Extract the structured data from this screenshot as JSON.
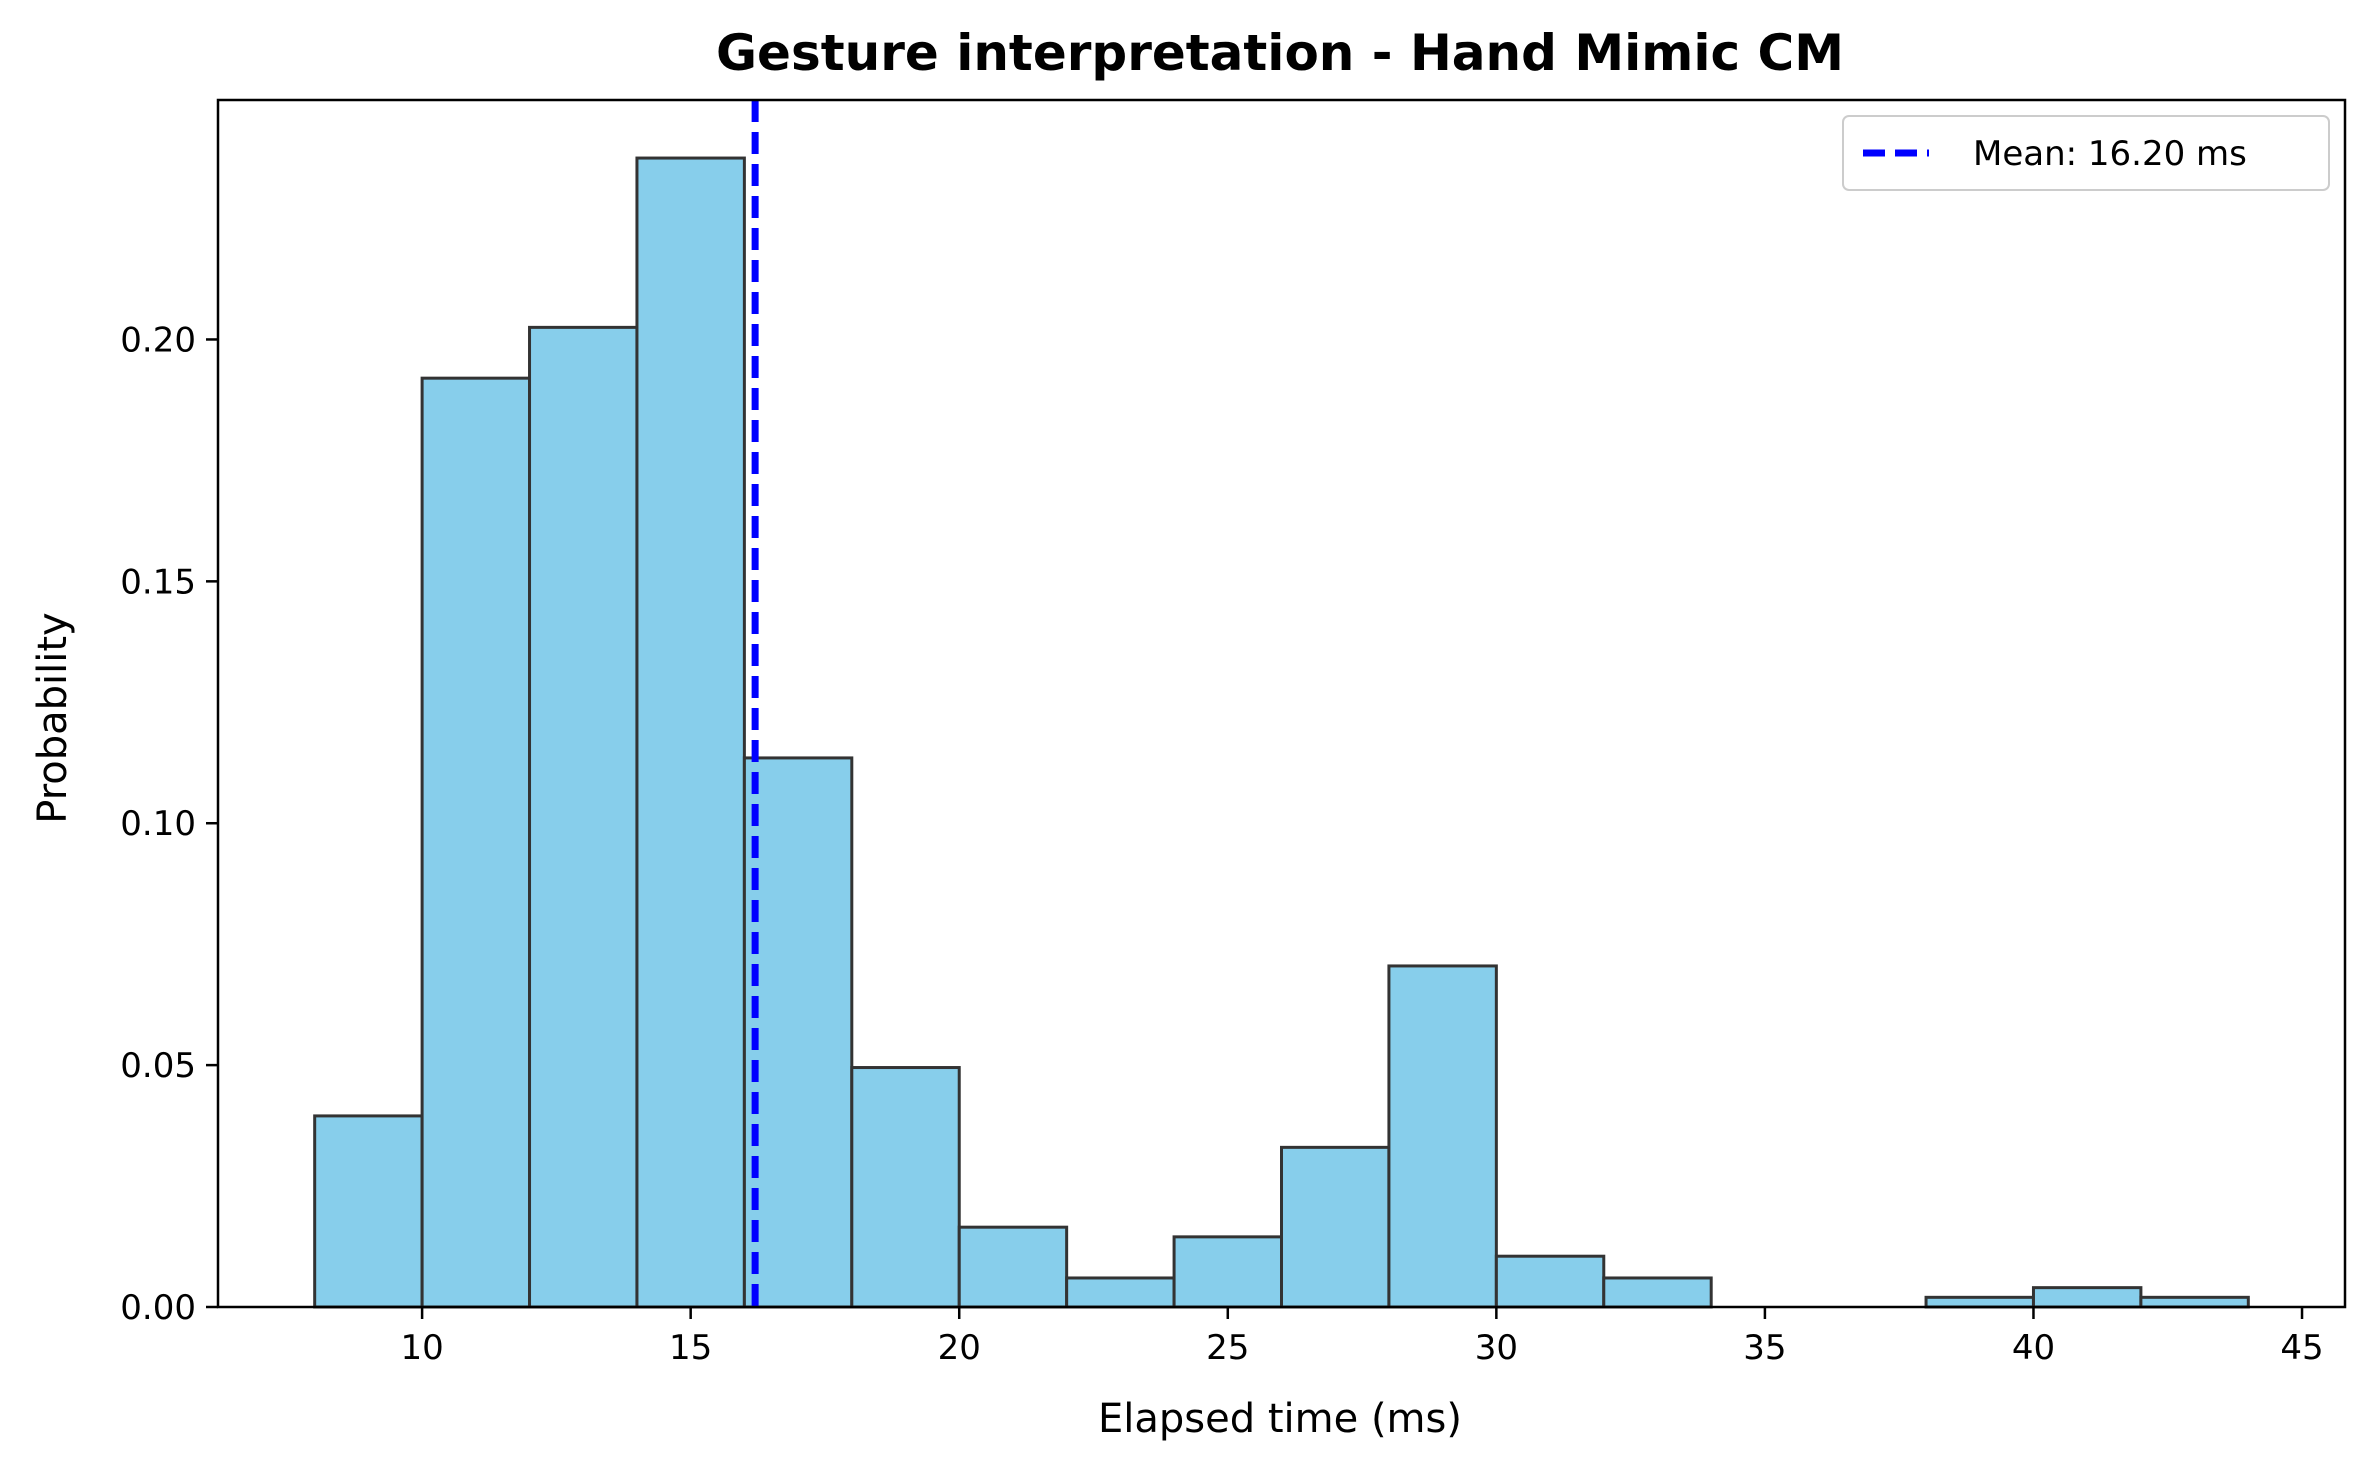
{
  "chart_data": {
    "type": "bar",
    "title": "Gesture interpretation - Hand Mimic CM",
    "xlabel": "Elapsed time (ms)",
    "ylabel": "Probability",
    "xlim": [
      6.2,
      45.8
    ],
    "ylim": [
      0,
      0.2495
    ],
    "grid": false,
    "legend_position": "top-right",
    "bar_color": "#87CEEB",
    "edge_color": "#333333",
    "mean_line_color": "#0000FF",
    "bin_edges": [
      8,
      10,
      12,
      14,
      16,
      18,
      20,
      22,
      24,
      26,
      28,
      30,
      32,
      34,
      36,
      38,
      40,
      42,
      44
    ],
    "values": [
      0.0395,
      0.192,
      0.2025,
      0.2375,
      0.1135,
      0.0495,
      0.0165,
      0.006,
      0.0145,
      0.033,
      0.0705,
      0.0105,
      0.006,
      0.0,
      0.0,
      0.002,
      0.004,
      0.002
    ],
    "mean": 16.2,
    "legend_label": "Mean: 16.20 ms",
    "xticks": [
      10,
      15,
      20,
      25,
      30,
      35,
      40,
      45
    ],
    "xtick_labels": [
      "10",
      "15",
      "20",
      "25",
      "30",
      "35",
      "40",
      "45"
    ],
    "yticks": [
      0,
      0.05,
      0.1,
      0.15,
      0.2
    ],
    "ytick_labels": [
      "0.00",
      "0.05",
      "0.10",
      "0.15",
      "0.20"
    ]
  }
}
